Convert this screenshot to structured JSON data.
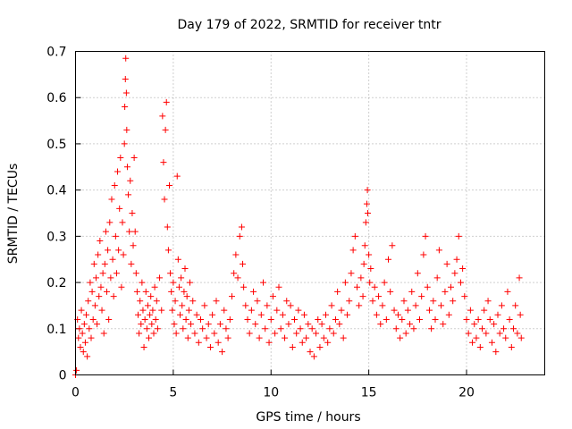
{
  "chart_data": {
    "type": "scatter",
    "title": "Day 179 of 2022, SRMTID for receiver tntr",
    "xlabel": "GPS time / hours",
    "ylabel": "SRMTID / TECUs",
    "xlim": [
      0,
      24
    ],
    "ylim": [
      0,
      0.7
    ],
    "x_ticks": [
      0,
      5,
      10,
      15,
      20
    ],
    "y_ticks": [
      0,
      0.1,
      0.2,
      0.3,
      0.4,
      0.5,
      0.6,
      0.7
    ],
    "x_tick_labels": [
      "0",
      "5",
      "10",
      "15",
      "20"
    ],
    "y_tick_labels": [
      "0",
      "0.1",
      "0.2",
      "0.3",
      "0.4",
      "0.5",
      "0.6",
      "0.7"
    ],
    "grid": true,
    "marker": "+",
    "series": [
      {
        "name": "SRMTID",
        "color": "#ff0000",
        "points": [
          [
            0.0,
            0.0
          ],
          [
            0.05,
            0.01
          ],
          [
            0.1,
            0.12
          ],
          [
            0.15,
            0.08
          ],
          [
            0.2,
            0.1
          ],
          [
            0.25,
            0.06
          ],
          [
            0.3,
            0.14
          ],
          [
            0.35,
            0.09
          ],
          [
            0.4,
            0.05
          ],
          [
            0.45,
            0.11
          ],
          [
            0.5,
            0.07
          ],
          [
            0.55,
            0.13
          ],
          [
            0.6,
            0.04
          ],
          [
            0.65,
            0.16
          ],
          [
            0.7,
            0.1
          ],
          [
            0.75,
            0.2
          ],
          [
            0.8,
            0.08
          ],
          [
            0.85,
            0.18
          ],
          [
            0.9,
            0.12
          ],
          [
            0.95,
            0.24
          ],
          [
            1.0,
            0.15
          ],
          [
            1.05,
            0.21
          ],
          [
            1.1,
            0.11
          ],
          [
            1.15,
            0.26
          ],
          [
            1.2,
            0.17
          ],
          [
            1.25,
            0.29
          ],
          [
            1.3,
            0.19
          ],
          [
            1.35,
            0.14
          ],
          [
            1.4,
            0.22
          ],
          [
            1.45,
            0.09
          ],
          [
            1.5,
            0.24
          ],
          [
            1.55,
            0.31
          ],
          [
            1.6,
            0.18
          ],
          [
            1.65,
            0.27
          ],
          [
            1.7,
            0.12
          ],
          [
            1.75,
            0.33
          ],
          [
            1.8,
            0.21
          ],
          [
            1.85,
            0.38
          ],
          [
            1.9,
            0.25
          ],
          [
            1.95,
            0.17
          ],
          [
            2.0,
            0.41
          ],
          [
            2.05,
            0.3
          ],
          [
            2.1,
            0.22
          ],
          [
            2.15,
            0.44
          ],
          [
            2.2,
            0.27
          ],
          [
            2.25,
            0.36
          ],
          [
            2.3,
            0.47
          ],
          [
            2.35,
            0.19
          ],
          [
            2.4,
            0.33
          ],
          [
            2.45,
            0.26
          ],
          [
            2.5,
            0.5
          ],
          [
            2.52,
            0.58
          ],
          [
            2.55,
            0.64
          ],
          [
            2.57,
            0.685
          ],
          [
            2.6,
            0.61
          ],
          [
            2.62,
            0.53
          ],
          [
            2.65,
            0.45
          ],
          [
            2.7,
            0.39
          ],
          [
            2.75,
            0.31
          ],
          [
            2.8,
            0.42
          ],
          [
            2.85,
            0.24
          ],
          [
            2.9,
            0.35
          ],
          [
            2.95,
            0.28
          ],
          [
            3.0,
            0.47
          ],
          [
            3.05,
            0.31
          ],
          [
            3.1,
            0.22
          ],
          [
            3.15,
            0.18
          ],
          [
            3.2,
            0.13
          ],
          [
            3.25,
            0.09
          ],
          [
            3.3,
            0.16
          ],
          [
            3.35,
            0.11
          ],
          [
            3.4,
            0.2
          ],
          [
            3.45,
            0.14
          ],
          [
            3.5,
            0.06
          ],
          [
            3.55,
            0.12
          ],
          [
            3.6,
            0.18
          ],
          [
            3.65,
            0.1
          ],
          [
            3.7,
            0.15
          ],
          [
            3.75,
            0.08
          ],
          [
            3.8,
            0.13
          ],
          [
            3.85,
            0.17
          ],
          [
            3.9,
            0.11
          ],
          [
            3.95,
            0.14
          ],
          [
            4.0,
            0.09
          ],
          [
            4.05,
            0.19
          ],
          [
            4.1,
            0.12
          ],
          [
            4.15,
            0.16
          ],
          [
            4.2,
            0.1
          ],
          [
            4.3,
            0.21
          ],
          [
            4.4,
            0.14
          ],
          [
            4.45,
            0.56
          ],
          [
            4.5,
            0.46
          ],
          [
            4.55,
            0.38
          ],
          [
            4.6,
            0.53
          ],
          [
            4.65,
            0.59
          ],
          [
            4.7,
            0.32
          ],
          [
            4.75,
            0.27
          ],
          [
            4.8,
            0.41
          ],
          [
            4.85,
            0.22
          ],
          [
            4.9,
            0.18
          ],
          [
            4.95,
            0.14
          ],
          [
            5.0,
            0.2
          ],
          [
            5.05,
            0.11
          ],
          [
            5.1,
            0.16
          ],
          [
            5.15,
            0.09
          ],
          [
            5.2,
            0.43
          ],
          [
            5.25,
            0.25
          ],
          [
            5.3,
            0.19
          ],
          [
            5.35,
            0.13
          ],
          [
            5.4,
            0.21
          ],
          [
            5.45,
            0.15
          ],
          [
            5.5,
            0.1
          ],
          [
            5.55,
            0.18
          ],
          [
            5.6,
            0.23
          ],
          [
            5.65,
            0.12
          ],
          [
            5.7,
            0.17
          ],
          [
            5.75,
            0.08
          ],
          [
            5.8,
            0.14
          ],
          [
            5.85,
            0.2
          ],
          [
            5.9,
            0.11
          ],
          [
            6.0,
            0.16
          ],
          [
            6.1,
            0.09
          ],
          [
            6.2,
            0.13
          ],
          [
            6.3,
            0.07
          ],
          [
            6.4,
            0.12
          ],
          [
            6.5,
            0.1
          ],
          [
            6.6,
            0.15
          ],
          [
            6.7,
            0.08
          ],
          [
            6.8,
            0.11
          ],
          [
            6.9,
            0.06
          ],
          [
            7.0,
            0.13
          ],
          [
            7.1,
            0.09
          ],
          [
            7.2,
            0.16
          ],
          [
            7.3,
            0.07
          ],
          [
            7.4,
            0.11
          ],
          [
            7.5,
            0.05
          ],
          [
            7.6,
            0.14
          ],
          [
            7.7,
            0.1
          ],
          [
            7.8,
            0.08
          ],
          [
            7.9,
            0.12
          ],
          [
            8.0,
            0.17
          ],
          [
            8.1,
            0.22
          ],
          [
            8.2,
            0.26
          ],
          [
            8.3,
            0.21
          ],
          [
            8.4,
            0.3
          ],
          [
            8.5,
            0.32
          ],
          [
            8.55,
            0.24
          ],
          [
            8.6,
            0.19
          ],
          [
            8.7,
            0.15
          ],
          [
            8.8,
            0.12
          ],
          [
            8.9,
            0.09
          ],
          [
            9.0,
            0.14
          ],
          [
            9.1,
            0.18
          ],
          [
            9.2,
            0.11
          ],
          [
            9.3,
            0.16
          ],
          [
            9.4,
            0.08
          ],
          [
            9.5,
            0.13
          ],
          [
            9.6,
            0.2
          ],
          [
            9.7,
            0.1
          ],
          [
            9.8,
            0.15
          ],
          [
            9.9,
            0.07
          ],
          [
            10.0,
            0.12
          ],
          [
            10.1,
            0.17
          ],
          [
            10.2,
            0.09
          ],
          [
            10.3,
            0.14
          ],
          [
            10.4,
            0.19
          ],
          [
            10.5,
            0.1
          ],
          [
            10.6,
            0.13
          ],
          [
            10.7,
            0.08
          ],
          [
            10.8,
            0.16
          ],
          [
            10.9,
            0.11
          ],
          [
            11.0,
            0.15
          ],
          [
            11.1,
            0.06
          ],
          [
            11.2,
            0.12
          ],
          [
            11.3,
            0.09
          ],
          [
            11.4,
            0.14
          ],
          [
            11.5,
            0.1
          ],
          [
            11.6,
            0.07
          ],
          [
            11.7,
            0.13
          ],
          [
            11.8,
            0.08
          ],
          [
            11.9,
            0.11
          ],
          [
            12.0,
            0.05
          ],
          [
            12.1,
            0.1
          ],
          [
            12.2,
            0.04
          ],
          [
            12.3,
            0.09
          ],
          [
            12.4,
            0.12
          ],
          [
            12.5,
            0.06
          ],
          [
            12.6,
            0.11
          ],
          [
            12.7,
            0.08
          ],
          [
            12.8,
            0.13
          ],
          [
            12.9,
            0.07
          ],
          [
            13.0,
            0.1
          ],
          [
            13.1,
            0.15
          ],
          [
            13.2,
            0.09
          ],
          [
            13.3,
            0.12
          ],
          [
            13.4,
            0.18
          ],
          [
            13.5,
            0.11
          ],
          [
            13.6,
            0.14
          ],
          [
            13.7,
            0.08
          ],
          [
            13.8,
            0.2
          ],
          [
            13.9,
            0.13
          ],
          [
            14.0,
            0.16
          ],
          [
            14.1,
            0.22
          ],
          [
            14.2,
            0.27
          ],
          [
            14.3,
            0.3
          ],
          [
            14.4,
            0.19
          ],
          [
            14.5,
            0.15
          ],
          [
            14.6,
            0.21
          ],
          [
            14.7,
            0.17
          ],
          [
            14.75,
            0.24
          ],
          [
            14.8,
            0.28
          ],
          [
            14.85,
            0.33
          ],
          [
            14.9,
            0.37
          ],
          [
            14.93,
            0.4
          ],
          [
            14.95,
            0.35
          ],
          [
            15.0,
            0.26
          ],
          [
            15.05,
            0.2
          ],
          [
            15.1,
            0.23
          ],
          [
            15.2,
            0.16
          ],
          [
            15.3,
            0.19
          ],
          [
            15.4,
            0.13
          ],
          [
            15.5,
            0.17
          ],
          [
            15.6,
            0.11
          ],
          [
            15.7,
            0.15
          ],
          [
            15.8,
            0.2
          ],
          [
            15.9,
            0.12
          ],
          [
            16.0,
            0.25
          ],
          [
            16.1,
            0.18
          ],
          [
            16.2,
            0.28
          ],
          [
            16.3,
            0.14
          ],
          [
            16.4,
            0.1
          ],
          [
            16.5,
            0.13
          ],
          [
            16.6,
            0.08
          ],
          [
            16.7,
            0.12
          ],
          [
            16.8,
            0.16
          ],
          [
            16.9,
            0.09
          ],
          [
            17.0,
            0.14
          ],
          [
            17.1,
            0.11
          ],
          [
            17.2,
            0.18
          ],
          [
            17.3,
            0.1
          ],
          [
            17.4,
            0.15
          ],
          [
            17.5,
            0.22
          ],
          [
            17.6,
            0.12
          ],
          [
            17.7,
            0.17
          ],
          [
            17.8,
            0.26
          ],
          [
            17.9,
            0.3
          ],
          [
            18.0,
            0.19
          ],
          [
            18.1,
            0.14
          ],
          [
            18.2,
            0.1
          ],
          [
            18.3,
            0.16
          ],
          [
            18.4,
            0.12
          ],
          [
            18.5,
            0.21
          ],
          [
            18.6,
            0.27
          ],
          [
            18.7,
            0.15
          ],
          [
            18.8,
            0.11
          ],
          [
            18.9,
            0.18
          ],
          [
            19.0,
            0.24
          ],
          [
            19.1,
            0.13
          ],
          [
            19.2,
            0.19
          ],
          [
            19.3,
            0.16
          ],
          [
            19.4,
            0.22
          ],
          [
            19.5,
            0.25
          ],
          [
            19.6,
            0.3
          ],
          [
            19.7,
            0.2
          ],
          [
            19.8,
            0.23
          ],
          [
            19.9,
            0.17
          ],
          [
            20.0,
            0.12
          ],
          [
            20.1,
            0.09
          ],
          [
            20.2,
            0.14
          ],
          [
            20.3,
            0.07
          ],
          [
            20.4,
            0.11
          ],
          [
            20.5,
            0.08
          ],
          [
            20.6,
            0.12
          ],
          [
            20.7,
            0.06
          ],
          [
            20.8,
            0.1
          ],
          [
            20.9,
            0.14
          ],
          [
            21.0,
            0.09
          ],
          [
            21.1,
            0.16
          ],
          [
            21.2,
            0.12
          ],
          [
            21.3,
            0.07
          ],
          [
            21.4,
            0.11
          ],
          [
            21.5,
            0.05
          ],
          [
            21.6,
            0.13
          ],
          [
            21.7,
            0.09
          ],
          [
            21.8,
            0.15
          ],
          [
            21.9,
            0.1
          ],
          [
            22.0,
            0.08
          ],
          [
            22.1,
            0.18
          ],
          [
            22.2,
            0.12
          ],
          [
            22.3,
            0.06
          ],
          [
            22.4,
            0.1
          ],
          [
            22.5,
            0.15
          ],
          [
            22.6,
            0.09
          ],
          [
            22.7,
            0.21
          ],
          [
            22.75,
            0.13
          ],
          [
            22.8,
            0.08
          ]
        ]
      }
    ]
  }
}
